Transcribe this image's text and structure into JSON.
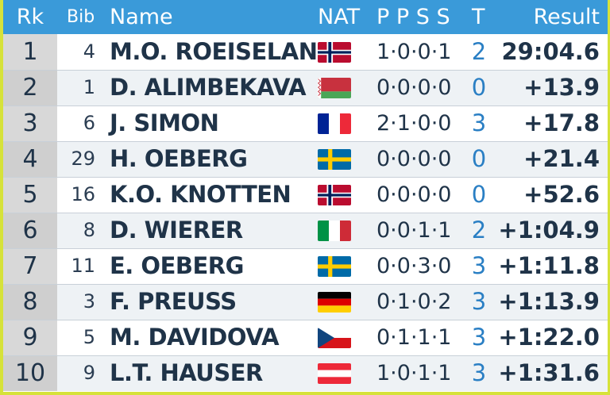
{
  "header": {
    "rank": "Rk",
    "bib": "Bib",
    "name": "Name",
    "nat": "NAT",
    "penalties": "P P S S",
    "total": "T",
    "result": "Result"
  },
  "rows": [
    {
      "rank": "1",
      "bib": "4",
      "name": "M.O. ROEISELAND",
      "nat": "NOR",
      "penalties": "1·0·0·1",
      "total": "2",
      "result": "29:04.6"
    },
    {
      "rank": "2",
      "bib": "1",
      "name": "D. ALIMBEKAVA",
      "nat": "BLR",
      "penalties": "0·0·0·0",
      "total": "0",
      "result": "+13.9"
    },
    {
      "rank": "3",
      "bib": "6",
      "name": "J. SIMON",
      "nat": "FRA",
      "penalties": "2·1·0·0",
      "total": "3",
      "result": "+17.8"
    },
    {
      "rank": "4",
      "bib": "29",
      "name": "H. OEBERG",
      "nat": "SWE",
      "penalties": "0·0·0·0",
      "total": "0",
      "result": "+21.4"
    },
    {
      "rank": "5",
      "bib": "16",
      "name": "K.O. KNOTTEN",
      "nat": "NOR",
      "penalties": "0·0·0·0",
      "total": "0",
      "result": "+52.6"
    },
    {
      "rank": "6",
      "bib": "8",
      "name": "D. WIERER",
      "nat": "ITA",
      "penalties": "0·0·1·1",
      "total": "2",
      "result": "+1:04.9"
    },
    {
      "rank": "7",
      "bib": "11",
      "name": "E. OEBERG",
      "nat": "SWE",
      "penalties": "0·0·3·0",
      "total": "3",
      "result": "+1:11.8"
    },
    {
      "rank": "8",
      "bib": "3",
      "name": "F. PREUSS",
      "nat": "GER",
      "penalties": "0·1·0·2",
      "total": "3",
      "result": "+1:13.9"
    },
    {
      "rank": "9",
      "bib": "5",
      "name": "M. DAVIDOVA",
      "nat": "CZE",
      "penalties": "0·1·1·1",
      "total": "3",
      "result": "+1:22.0"
    },
    {
      "rank": "10",
      "bib": "9",
      "name": "L.T. HAUSER",
      "nat": "AUT",
      "penalties": "1·0·1·1",
      "total": "3",
      "result": "+1:31.6"
    }
  ],
  "colors": {
    "header_bg": "#3a9ad9",
    "frame": "#d6e23a",
    "text": "#1f3348",
    "total_accent": "#2a7fc4"
  }
}
